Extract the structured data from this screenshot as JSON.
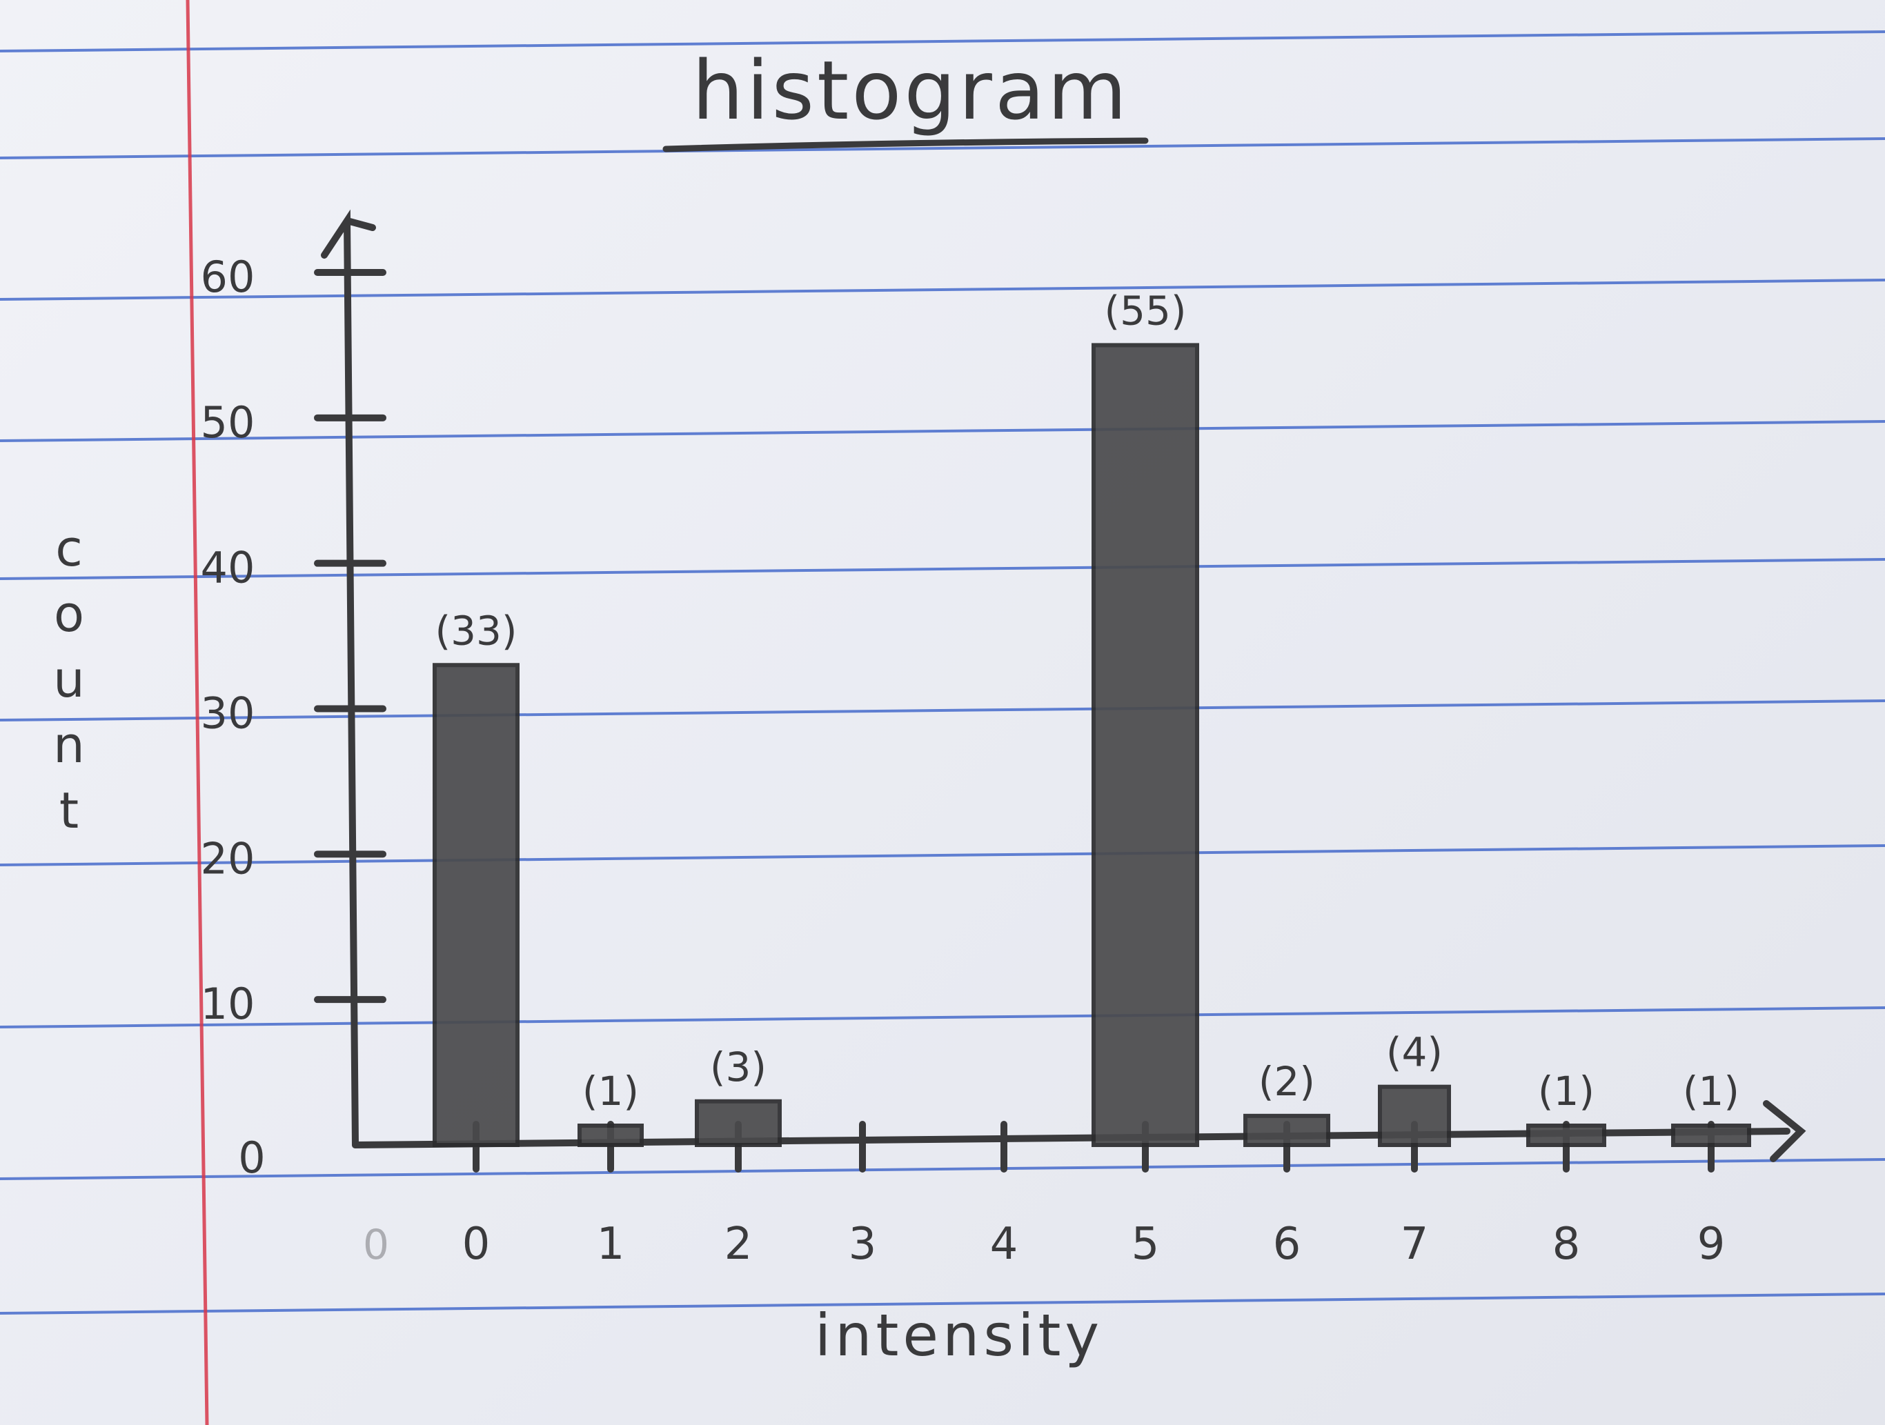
{
  "paper": {
    "rule_color": "#3c63c9",
    "margin_color": "#d8384a"
  },
  "chart_data": {
    "type": "bar",
    "title": "histogram",
    "xlabel": "intensity",
    "ylabel": "count",
    "categories": [
      "0",
      "1",
      "2",
      "3",
      "4",
      "5",
      "6",
      "7",
      "8",
      "9"
    ],
    "values": [
      33,
      1,
      3,
      0,
      0,
      55,
      2,
      4,
      1,
      1
    ],
    "data_labels": [
      "(33)",
      "(1)",
      "(3)",
      "",
      "",
      "(55)",
      "(2)",
      "(4)",
      "(1)",
      "(1)"
    ],
    "x_origin_label": "0",
    "y_ticks": [
      0,
      10,
      20,
      30,
      40,
      50,
      60
    ],
    "ylim": [
      0,
      60
    ],
    "bar_color": "#4a4a4c",
    "ink_color": "#3a3a3c",
    "grid": false
  }
}
